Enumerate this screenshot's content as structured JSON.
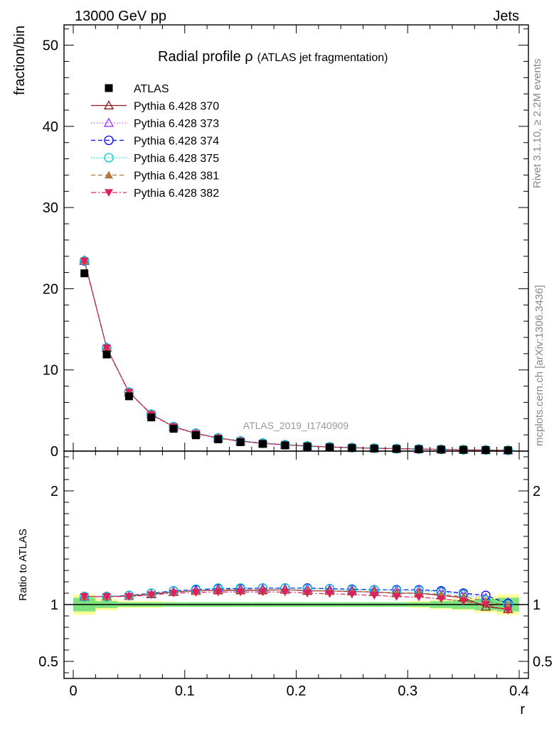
{
  "header": {
    "left": "13000 GeV pp",
    "right": "Jets"
  },
  "title": {
    "main": "Radial profile ρ",
    "sub": "(ATLAS jet fragmentation)"
  },
  "side_labels": {
    "rivet": "Rivet 3.1.10, ≥ 2.2M events",
    "mcplots": "mcplots.cern.ch [arXiv:1306.3436]"
  },
  "watermark": "ATLAS_2019_I1740909",
  "colors": {
    "ATLAS": "#000000",
    "p370": "#8b1a1a",
    "p373": "#9b30ff",
    "p374": "#0000ee",
    "p375": "#00c8c8",
    "p381": "#b07840",
    "p382": "#e0205a",
    "band_inner": "#7ee37e",
    "band_outer": "#ffff99"
  },
  "chart_data": [
    {
      "type": "scatter",
      "panel": "main",
      "xlabel": "r",
      "ylabel": "fraction/bin",
      "xlim": [
        0,
        0.4
      ],
      "ylim": [
        0,
        52.5
      ],
      "yticks": [
        0,
        10,
        20,
        30,
        40,
        50
      ],
      "xticks": [
        0,
        0.1,
        0.2,
        0.3,
        0.4
      ],
      "legend_position": "top-left",
      "x": [
        0.01,
        0.03,
        0.05,
        0.07,
        0.09,
        0.11,
        0.13,
        0.15,
        0.17,
        0.19,
        0.21,
        0.23,
        0.25,
        0.27,
        0.29,
        0.31,
        0.33,
        0.35,
        0.37,
        0.39
      ],
      "series": [
        {
          "name": "ATLAS",
          "marker": "square",
          "values": [
            21.9,
            11.9,
            6.75,
            4.15,
            2.75,
            1.95,
            1.45,
            1.1,
            0.88,
            0.7,
            0.56,
            0.46,
            0.38,
            0.32,
            0.27,
            0.23,
            0.19,
            0.16,
            0.13,
            0.1
          ]
        },
        {
          "name": "Pythia 6.428 370",
          "marker": "triangle-open",
          "line": "solid",
          "values": [
            23.5,
            12.75,
            7.25,
            4.55,
            3.0,
            2.18,
            1.6,
            1.22,
            0.96,
            0.78,
            0.62,
            0.5,
            0.42,
            0.35,
            0.3,
            0.25,
            0.2,
            0.16,
            0.12,
            0.09
          ]
        },
        {
          "name": "Pythia 6.428 373",
          "marker": "triangle-open",
          "line": "dotted",
          "values": [
            23.4,
            12.7,
            7.25,
            4.55,
            3.0,
            2.18,
            1.62,
            1.24,
            0.98,
            0.79,
            0.63,
            0.51,
            0.43,
            0.36,
            0.3,
            0.26,
            0.21,
            0.17,
            0.13,
            0.1
          ]
        },
        {
          "name": "Pythia 6.428 374",
          "marker": "circle-open",
          "line": "dashed",
          "values": [
            23.4,
            12.7,
            7.25,
            4.55,
            3.02,
            2.2,
            1.62,
            1.25,
            0.98,
            0.79,
            0.63,
            0.52,
            0.43,
            0.36,
            0.3,
            0.26,
            0.21,
            0.17,
            0.14,
            0.1
          ]
        },
        {
          "name": "Pythia 6.428 375",
          "marker": "circle-open",
          "line": "dotted",
          "values": [
            23.4,
            12.7,
            7.25,
            4.55,
            3.02,
            2.2,
            1.63,
            1.25,
            0.98,
            0.79,
            0.63,
            0.52,
            0.43,
            0.36,
            0.3,
            0.26,
            0.21,
            0.17,
            0.13,
            0.1
          ]
        },
        {
          "name": "Pythia 6.428 381",
          "marker": "triangle-filled",
          "line": "dashed",
          "values": [
            23.4,
            12.7,
            7.25,
            4.55,
            3.0,
            2.17,
            1.6,
            1.22,
            0.96,
            0.78,
            0.62,
            0.5,
            0.42,
            0.35,
            0.29,
            0.25,
            0.2,
            0.16,
            0.13,
            0.1
          ]
        },
        {
          "name": "Pythia 6.428 382",
          "marker": "triangle-down-filled",
          "line": "dashdot",
          "values": [
            23.4,
            12.7,
            7.25,
            4.5,
            2.98,
            2.15,
            1.58,
            1.2,
            0.95,
            0.77,
            0.61,
            0.5,
            0.41,
            0.34,
            0.29,
            0.24,
            0.19,
            0.15,
            0.12,
            0.09
          ]
        }
      ]
    },
    {
      "type": "scatter",
      "panel": "ratio",
      "xlabel": "r",
      "ylabel": "Ratio to ATLAS",
      "xlim": [
        0,
        0.4
      ],
      "ylim": [
        0.35,
        2.35
      ],
      "yticks": [
        0.5,
        1,
        2
      ],
      "x": [
        0.01,
        0.03,
        0.05,
        0.07,
        0.09,
        0.11,
        0.13,
        0.15,
        0.17,
        0.19,
        0.21,
        0.23,
        0.25,
        0.27,
        0.29,
        0.31,
        0.33,
        0.35,
        0.37,
        0.39
      ],
      "bands": {
        "inner": [
          0.06,
          0.03,
          0.02,
          0.02,
          0.02,
          0.02,
          0.02,
          0.02,
          0.02,
          0.02,
          0.02,
          0.02,
          0.02,
          0.02,
          0.02,
          0.02,
          0.03,
          0.04,
          0.05,
          0.06
        ],
        "outer": [
          0.09,
          0.05,
          0.03,
          0.03,
          0.02,
          0.02,
          0.02,
          0.02,
          0.02,
          0.02,
          0.02,
          0.02,
          0.02,
          0.02,
          0.02,
          0.03,
          0.04,
          0.05,
          0.07,
          0.09
        ]
      },
      "series": [
        {
          "name": "Pythia 6.428 370",
          "values": [
            1.07,
            1.07,
            1.075,
            1.09,
            1.11,
            1.12,
            1.125,
            1.125,
            1.125,
            1.13,
            1.12,
            1.12,
            1.115,
            1.11,
            1.1,
            1.1,
            1.08,
            1.06,
            0.98,
            0.96
          ]
        },
        {
          "name": "Pythia 6.428 373",
          "values": [
            1.07,
            1.07,
            1.075,
            1.095,
            1.115,
            1.13,
            1.14,
            1.14,
            1.14,
            1.14,
            1.14,
            1.135,
            1.13,
            1.13,
            1.125,
            1.125,
            1.12,
            1.1,
            1.06,
            1.02
          ]
        },
        {
          "name": "Pythia 6.428 374",
          "values": [
            1.07,
            1.07,
            1.08,
            1.1,
            1.12,
            1.13,
            1.14,
            1.14,
            1.145,
            1.145,
            1.145,
            1.14,
            1.135,
            1.13,
            1.13,
            1.13,
            1.12,
            1.1,
            1.08,
            1.01
          ]
        },
        {
          "name": "Pythia 6.428 375",
          "values": [
            1.07,
            1.07,
            1.08,
            1.1,
            1.12,
            1.135,
            1.145,
            1.145,
            1.145,
            1.145,
            1.14,
            1.14,
            1.13,
            1.13,
            1.125,
            1.125,
            1.11,
            1.09,
            1.04,
            1.0
          ]
        },
        {
          "name": "Pythia 6.428 381",
          "values": [
            1.07,
            1.07,
            1.075,
            1.095,
            1.11,
            1.12,
            1.13,
            1.13,
            1.13,
            1.13,
            1.125,
            1.12,
            1.115,
            1.11,
            1.1,
            1.1,
            1.09,
            1.07,
            1.03,
            0.99
          ]
        },
        {
          "name": "Pythia 6.428 382",
          "values": [
            1.07,
            1.07,
            1.07,
            1.085,
            1.1,
            1.105,
            1.11,
            1.11,
            1.11,
            1.11,
            1.1,
            1.095,
            1.09,
            1.08,
            1.07,
            1.065,
            1.05,
            1.03,
            1.0,
            0.95
          ]
        }
      ]
    }
  ]
}
